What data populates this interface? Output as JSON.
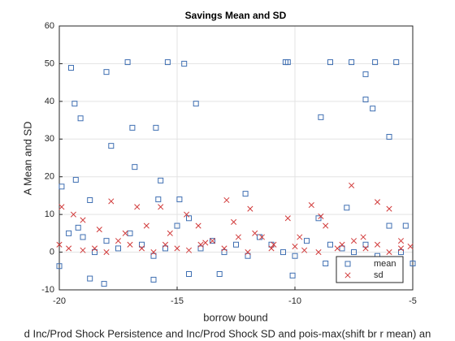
{
  "chart_data": {
    "type": "scatter",
    "title": "Savings Mean and SD",
    "xlabel": "borrow bound",
    "xlabel2": "d Inc/Prod Shock Persistence and Inc/Prod Shock SD and pois-max(shift br r mean) an",
    "ylabel": "A Mean and SD",
    "xlim": [
      -20,
      -5
    ],
    "ylim": [
      -10,
      60
    ],
    "xticks": [
      -20,
      -15,
      -10,
      -5
    ],
    "yticks": [
      -10,
      0,
      10,
      20,
      30,
      40,
      50,
      60
    ],
    "grid": true,
    "legend": "southeast",
    "series": [
      {
        "name": "mean",
        "color": "#3f6fb2",
        "marker": "square",
        "x": [
          -19.9,
          -19.5,
          -19.35,
          -19.3,
          -19.1,
          -18.7,
          -18.0,
          -17.8,
          -17.1,
          -16.9,
          -16.8,
          -15.4,
          -15.9,
          -15.7,
          -14.7,
          -14.2,
          -12.1,
          -10.4,
          -10.3,
          -8.9,
          -8.5,
          -7.6,
          -7.0,
          -6.6,
          -7.0,
          -6.7,
          -6.0,
          -5.7,
          -7.8,
          -14.9,
          -20.0,
          -18.7,
          -18.1,
          -16.0,
          -14.5,
          -13.2,
          -10.1,
          -5.0,
          -8.7,
          -7.6,
          -19.6,
          -19.0,
          -18.5,
          -18.0,
          -17.5,
          -17.0,
          -16.5,
          -16.0,
          -15.5,
          -15.0,
          -14.5,
          -14.0,
          -13.5,
          -13.0,
          -12.5,
          -12.0,
          -11.5,
          -11.0,
          -10.5,
          -10.0,
          -9.5,
          -9.0,
          -8.5,
          -8.0,
          -7.5,
          -7.0,
          -6.5,
          -6.0,
          -5.3,
          -5.5,
          -15.8,
          -19.2
        ],
        "values": [
          17.4,
          48.9,
          39.4,
          19.2,
          35.5,
          13.8,
          47.8,
          28.2,
          50.4,
          33,
          22.6,
          50.4,
          33,
          19,
          50,
          39.4,
          15.5,
          50.4,
          50.4,
          35.8,
          50.4,
          50.4,
          47.2,
          50.4,
          40.5,
          38.1,
          30.6,
          50.4,
          11.8,
          14,
          -3.7,
          -7,
          -8.4,
          -7.3,
          -5.8,
          -5.8,
          -6.2,
          -3,
          -3,
          -2.6,
          5,
          4,
          0,
          3,
          1,
          5,
          2,
          -1,
          1,
          7,
          9,
          1,
          3,
          0,
          2,
          -1,
          4,
          2,
          0,
          -1,
          3,
          9,
          2,
          1,
          0,
          2,
          -1,
          7,
          7,
          0,
          14,
          6.5
        ]
      },
      {
        "name": "sd",
        "color": "#d13a3a",
        "marker": "x",
        "x": [
          -19.9,
          -19.4,
          -19.0,
          -18.3,
          -17.8,
          -17.2,
          -16.7,
          -16.3,
          -15.7,
          -15.3,
          -14.6,
          -14.1,
          -13.5,
          -12.9,
          -12.4,
          -11.9,
          -11.4,
          -10.9,
          -10.3,
          -9.8,
          -9.3,
          -8.7,
          -8.2,
          -7.6,
          -7.1,
          -6.5,
          -6.0,
          -5.5,
          -5.1,
          -20.0,
          -19.6,
          -19.0,
          -18.5,
          -18.0,
          -17.5,
          -17.0,
          -16.5,
          -16.0,
          -15.5,
          -15.0,
          -14.5,
          -14.0,
          -13.0,
          -12.0,
          -11.0,
          -10.0,
          -9.0,
          -8.0,
          -7.5,
          -7.0,
          -6.5,
          -6.0,
          -5.5,
          -13.8,
          -12.6,
          -11.7,
          -9.6,
          -8.9
        ],
        "values": [
          12,
          10,
          8.5,
          6,
          13.5,
          5,
          12,
          7,
          12,
          5,
          10,
          7,
          3,
          13.8,
          4,
          11.5,
          4,
          2,
          9,
          4,
          12.5,
          7,
          1,
          17.7,
          4,
          13.3,
          11.5,
          3,
          1.5,
          2,
          1,
          0.5,
          1,
          0,
          3,
          2,
          1,
          0,
          2,
          1,
          0.5,
          2,
          1,
          0,
          1,
          1.5,
          0,
          2,
          3,
          1,
          2,
          0,
          1,
          2.5,
          8,
          5,
          0.5,
          9.5
        ]
      }
    ]
  }
}
